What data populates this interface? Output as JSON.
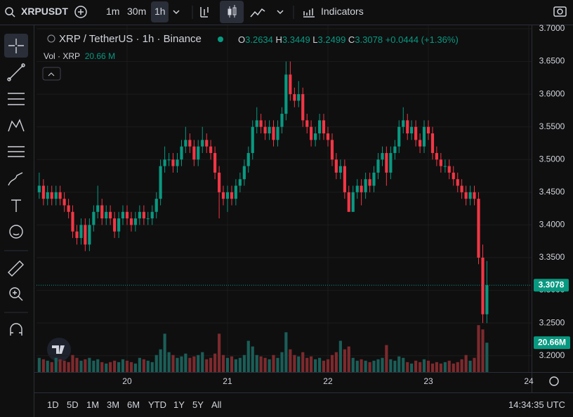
{
  "toolbar": {
    "symbol": "XRPUSDT",
    "intervals": [
      "1m",
      "30m",
      "1h"
    ],
    "indicators": "Indicators"
  },
  "legend": {
    "title": "XRP / TetherUS · 1h · Binance",
    "open_label": "O",
    "high_label": "H",
    "low_label": "L",
    "close_label": "C",
    "change": "+0.0444 (+1.36%)",
    "volume_title": "Vol · XRP",
    "volume_value": "20.66 M"
  },
  "bottom_bar": {
    "ranges": [
      "1D",
      "5D",
      "1M",
      "3M",
      "6M",
      "YTD",
      "1Y",
      "5Y",
      "All"
    ],
    "clock": "14:34:35 UTC"
  },
  "chart_data": {
    "type": "candlestick",
    "x": [
      19.125,
      19.167,
      19.208,
      19.25,
      19.292,
      19.333,
      19.375,
      19.417,
      19.458,
      19.5,
      19.542,
      19.583,
      19.625,
      19.667,
      19.708,
      19.75,
      19.792,
      19.833,
      19.875,
      19.917,
      19.958,
      20,
      20.042,
      20.083,
      20.125,
      20.167,
      20.208,
      20.25,
      20.292,
      20.333,
      20.375,
      20.417,
      20.458,
      20.5,
      20.542,
      20.583,
      20.625,
      20.667,
      20.708,
      20.75,
      20.792,
      20.833,
      20.875,
      20.917,
      20.958,
      21,
      21.042,
      21.083,
      21.125,
      21.167,
      21.208,
      21.25,
      21.292,
      21.333,
      21.375,
      21.417,
      21.458,
      21.5,
      21.542,
      21.583,
      21.625,
      21.667,
      21.708,
      21.75,
      21.792,
      21.833,
      21.875,
      21.917,
      21.958,
      22,
      22.042,
      22.083,
      22.125,
      22.167,
      22.208,
      22.25,
      22.292,
      22.333,
      22.375,
      22.417,
      22.458,
      22.5,
      22.542,
      22.583,
      22.625,
      22.667,
      22.708,
      22.75,
      22.792,
      22.833,
      22.875,
      22.917,
      22.958,
      23,
      23.042,
      23.083,
      23.125,
      23.167,
      23.208,
      23.25,
      23.292,
      23.333,
      23.375,
      23.417,
      23.458,
      23.5,
      23.542,
      23.583
    ],
    "open": [
      3.45,
      3.46,
      3.44,
      3.45,
      3.44,
      3.45,
      3.44,
      3.43,
      3.42,
      3.39,
      3.38,
      3.4,
      3.37,
      3.4,
      3.42,
      3.43,
      3.41,
      3.42,
      3.41,
      3.39,
      3.41,
      3.42,
      3.41,
      3.4,
      3.41,
      3.42,
      3.41,
      3.41,
      3.42,
      3.44,
      3.49,
      3.5,
      3.5,
      3.49,
      3.5,
      3.52,
      3.53,
      3.52,
      3.5,
      3.52,
      3.53,
      3.52,
      3.51,
      3.48,
      3.45,
      3.44,
      3.45,
      3.44,
      3.46,
      3.47,
      3.49,
      3.51,
      3.55,
      3.56,
      3.55,
      3.54,
      3.55,
      3.53,
      3.55,
      3.57,
      3.63,
      3.6,
      3.59,
      3.6,
      3.56,
      3.55,
      3.53,
      3.54,
      3.56,
      3.54,
      3.53,
      3.5,
      3.48,
      3.49,
      3.45,
      3.42,
      3.45,
      3.46,
      3.45,
      3.47,
      3.46,
      3.48,
      3.5,
      3.51,
      3.48,
      3.51,
      3.52,
      3.55,
      3.56,
      3.54,
      3.55,
      3.53,
      3.52,
      3.55,
      3.54,
      3.51,
      3.5,
      3.49,
      3.49,
      3.48,
      3.47,
      3.46,
      3.45,
      3.44,
      3.45,
      3.44,
      3.35,
      3.2634
    ],
    "high": [
      3.48,
      3.47,
      3.46,
      3.46,
      3.46,
      3.46,
      3.45,
      3.44,
      3.43,
      3.4,
      3.41,
      3.41,
      3.41,
      3.43,
      3.46,
      3.44,
      3.43,
      3.43,
      3.42,
      3.42,
      3.43,
      3.43,
      3.42,
      3.42,
      3.43,
      3.43,
      3.42,
      3.43,
      3.45,
      3.5,
      3.52,
      3.51,
      3.51,
      3.51,
      3.53,
      3.55,
      3.54,
      3.53,
      3.53,
      3.55,
      3.54,
      3.53,
      3.52,
      3.49,
      3.46,
      3.46,
      3.46,
      3.47,
      3.48,
      3.5,
      3.52,
      3.56,
      3.58,
      3.57,
      3.56,
      3.56,
      3.56,
      3.56,
      3.58,
      3.65,
      3.65,
      3.61,
      3.62,
      3.61,
      3.57,
      3.56,
      3.55,
      3.57,
      3.57,
      3.55,
      3.54,
      3.51,
      3.5,
      3.5,
      3.46,
      3.46,
      3.47,
      3.47,
      3.48,
      3.48,
      3.49,
      3.51,
      3.52,
      3.52,
      3.52,
      3.53,
      3.56,
      3.58,
      3.57,
      3.56,
      3.56,
      3.54,
      3.56,
      3.56,
      3.55,
      3.52,
      3.51,
      3.5,
      3.5,
      3.49,
      3.48,
      3.47,
      3.46,
      3.46,
      3.46,
      3.45,
      3.37,
      3.3449
    ],
    "low": [
      3.44,
      3.43,
      3.43,
      3.43,
      3.43,
      3.43,
      3.42,
      3.41,
      3.38,
      3.37,
      3.37,
      3.36,
      3.36,
      3.39,
      3.41,
      3.4,
      3.4,
      3.4,
      3.38,
      3.38,
      3.4,
      3.4,
      3.39,
      3.39,
      3.4,
      3.4,
      3.4,
      3.4,
      3.41,
      3.43,
      3.48,
      3.49,
      3.48,
      3.48,
      3.49,
      3.51,
      3.51,
      3.49,
      3.49,
      3.51,
      3.51,
      3.5,
      3.47,
      3.41,
      3.43,
      3.42,
      3.43,
      3.43,
      3.45,
      3.46,
      3.48,
      3.5,
      3.54,
      3.54,
      3.53,
      3.53,
      3.52,
      3.52,
      3.54,
      3.56,
      3.59,
      3.58,
      3.58,
      3.55,
      3.54,
      3.52,
      3.52,
      3.53,
      3.53,
      3.52,
      3.49,
      3.47,
      3.47,
      3.44,
      3.42,
      3.42,
      3.44,
      3.43,
      3.44,
      3.45,
      3.45,
      3.47,
      3.49,
      3.46,
      3.47,
      3.5,
      3.51,
      3.54,
      3.53,
      3.53,
      3.52,
      3.51,
      3.51,
      3.53,
      3.5,
      3.49,
      3.48,
      3.48,
      3.47,
      3.46,
      3.45,
      3.44,
      3.43,
      3.43,
      3.43,
      3.34,
      3.25,
      3.2499
    ],
    "close": [
      3.46,
      3.44,
      3.45,
      3.44,
      3.45,
      3.44,
      3.43,
      3.42,
      3.39,
      3.38,
      3.4,
      3.37,
      3.4,
      3.42,
      3.43,
      3.41,
      3.42,
      3.41,
      3.39,
      3.41,
      3.42,
      3.41,
      3.4,
      3.41,
      3.42,
      3.41,
      3.41,
      3.42,
      3.44,
      3.49,
      3.5,
      3.5,
      3.49,
      3.5,
      3.52,
      3.53,
      3.52,
      3.5,
      3.52,
      3.53,
      3.52,
      3.51,
      3.48,
      3.45,
      3.44,
      3.45,
      3.44,
      3.46,
      3.47,
      3.49,
      3.51,
      3.55,
      3.56,
      3.55,
      3.54,
      3.55,
      3.53,
      3.55,
      3.57,
      3.63,
      3.6,
      3.59,
      3.6,
      3.56,
      3.55,
      3.53,
      3.54,
      3.56,
      3.54,
      3.53,
      3.5,
      3.48,
      3.49,
      3.45,
      3.42,
      3.45,
      3.46,
      3.45,
      3.47,
      3.46,
      3.48,
      3.5,
      3.51,
      3.48,
      3.51,
      3.52,
      3.55,
      3.56,
      3.54,
      3.55,
      3.53,
      3.52,
      3.55,
      3.54,
      3.51,
      3.5,
      3.49,
      3.49,
      3.48,
      3.47,
      3.46,
      3.45,
      3.44,
      3.45,
      3.44,
      3.35,
      3.2634,
      3.3078
    ],
    "volume": [
      10,
      9,
      8,
      7,
      10,
      9,
      8,
      7,
      12,
      10,
      8,
      9,
      10,
      8,
      9,
      7,
      6,
      7,
      8,
      7,
      9,
      8,
      7,
      6,
      10,
      9,
      8,
      7,
      12,
      16,
      27,
      14,
      12,
      10,
      11,
      13,
      10,
      11,
      12,
      14,
      9,
      10,
      13,
      27,
      12,
      10,
      11,
      9,
      10,
      12,
      22,
      18,
      12,
      11,
      10,
      9,
      12,
      10,
      14,
      28,
      16,
      12,
      11,
      14,
      10,
      11,
      9,
      10,
      8,
      9,
      12,
      14,
      22,
      16,
      18,
      10,
      8,
      9,
      8,
      7,
      8,
      9,
      10,
      19,
      9,
      8,
      11,
      10,
      7,
      6,
      8,
      7,
      9,
      8,
      6,
      7,
      6,
      7,
      8,
      6,
      7,
      9,
      12,
      8,
      10,
      33,
      30,
      20.66
    ],
    "volume_tag": "20.66M",
    "xlim": [
      19.098,
      24.028
    ],
    "xticks": [
      20,
      21,
      22,
      23,
      24
    ],
    "ylim": [
      3.175,
      3.7
    ],
    "yticks": [
      {
        "value": 3.7,
        "label": "3.7000"
      },
      {
        "value": 3.65,
        "label": "3.6500"
      },
      {
        "value": 3.6,
        "label": "3.6000"
      },
      {
        "value": 3.55,
        "label": "3.5500"
      },
      {
        "value": 3.5,
        "label": "3.5000"
      },
      {
        "value": 3.45,
        "label": "3.4500"
      },
      {
        "value": 3.4,
        "label": "3.4000"
      },
      {
        "value": 3.35,
        "label": "3.3500"
      },
      {
        "value": 3.3,
        "label": "3.3000"
      },
      {
        "value": 3.25,
        "label": "3.2500"
      },
      {
        "value": 3.2,
        "label": "3.2000"
      }
    ],
    "volume_ylim": [
      0,
      80
    ],
    "grid": true,
    "up_color": "#089981",
    "down_color": "#f23645",
    "volume_up_color": "#1b5e58",
    "volume_down_color": "#7d2a2e"
  }
}
